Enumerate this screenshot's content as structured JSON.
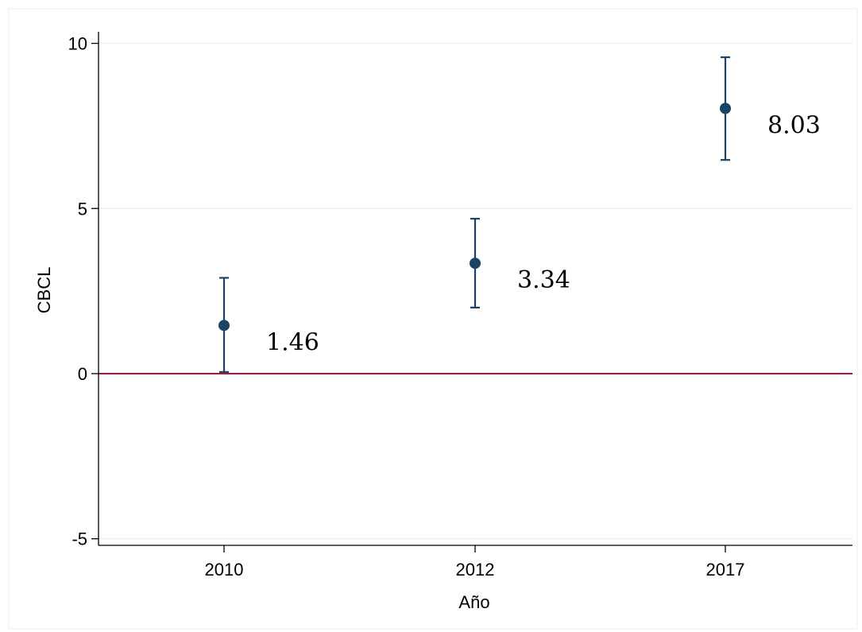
{
  "chart_data": {
    "type": "scatter",
    "title": "",
    "xlabel": "Año",
    "ylabel": "CBCL",
    "categories": [
      "2010",
      "2012",
      "2017"
    ],
    "series": [
      {
        "values": [
          1.46,
          3.34,
          8.03
        ],
        "ci_low": [
          0.05,
          2.0,
          6.47
        ],
        "ci_high": [
          2.9,
          4.69,
          9.58
        ],
        "labels": [
          "1.46",
          "3.34",
          "8.03"
        ]
      }
    ],
    "yticks": [
      -5,
      0,
      5,
      10
    ],
    "ytick_labels": [
      "-5",
      "0",
      "5",
      "10"
    ],
    "ylim": [
      -5.2,
      10.35
    ],
    "grid": true,
    "reference_line": 0,
    "colors": {
      "marker": "#1a4466",
      "errorbar": "#1a4466",
      "reference_line": "#b0163a",
      "grid": "#e6eef0",
      "frame": "#e9eef0"
    }
  }
}
